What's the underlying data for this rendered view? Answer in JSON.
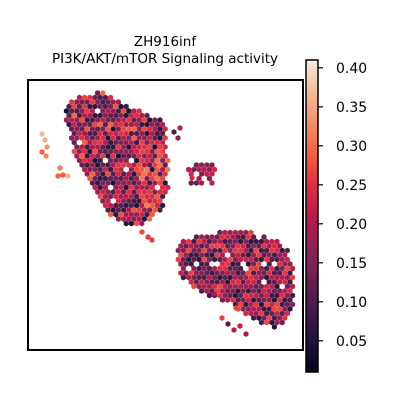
{
  "chart_data": {
    "type": "scatter",
    "subtype": "spatial hexagonal spot map",
    "title_line1": "ZH916inf",
    "title_line2": "PI3K/AKT/mTOR Signaling activity",
    "xlabel": "",
    "ylabel": "",
    "grid": false,
    "axis_ticks": false,
    "colormap": "rocket",
    "colorbar": {
      "orientation": "vertical",
      "placement": "right",
      "range": [
        0.01,
        0.41
      ],
      "ticks": [
        0.05,
        0.1,
        0.15,
        0.2,
        0.25,
        0.3,
        0.35,
        0.4
      ],
      "tick_labels": [
        "0.05",
        "0.10",
        "0.15",
        "0.20",
        "0.25",
        "0.30",
        "0.35",
        "0.40"
      ]
    },
    "regions": [
      {
        "name": "upper tissue section",
        "typical_value": 0.17,
        "range": [
          0.02,
          0.3
        ]
      },
      {
        "name": "upper section right edge",
        "typical_value": 0.27,
        "range": [
          0.22,
          0.32
        ]
      },
      {
        "name": "left outlying spots",
        "typical_value": 0.33,
        "range": [
          0.29,
          0.39
        ]
      },
      {
        "name": "small right cluster",
        "typical_value": 0.18,
        "range": [
          0.12,
          0.28
        ]
      },
      {
        "name": "lower tissue section",
        "typical_value": 0.17,
        "range": [
          0.03,
          0.27
        ]
      }
    ]
  }
}
